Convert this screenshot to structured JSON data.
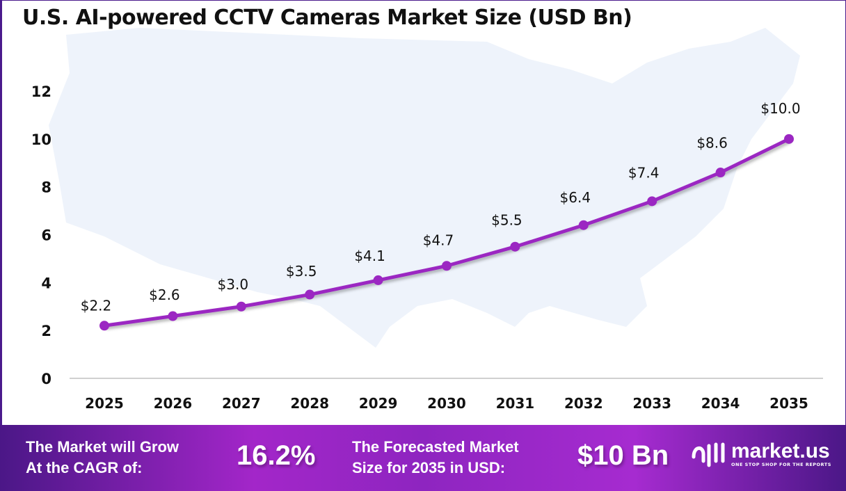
{
  "chart_data": {
    "type": "line",
    "title": "U.S. AI-powered CCTV Cameras Market Size (USD Bn)",
    "categories": [
      "2025",
      "2026",
      "2027",
      "2028",
      "2029",
      "2030",
      "2031",
      "2032",
      "2033",
      "2034",
      "2035"
    ],
    "values": [
      2.2,
      2.6,
      3.0,
      3.5,
      4.1,
      4.7,
      5.5,
      6.4,
      7.4,
      8.6,
      10.0
    ],
    "data_labels": [
      "$2.2",
      "$2.6",
      "$3.0",
      "$3.5",
      "$4.1",
      "$4.7",
      "$5.5",
      "$6.4",
      "$7.4",
      "$8.6",
      "$10.0"
    ],
    "yticks": [
      "0",
      "2",
      "4",
      "6",
      "8",
      "10",
      "12"
    ],
    "ylim": [
      0,
      12
    ],
    "grid": false,
    "line_color": "#9b27c2"
  },
  "banner": {
    "cagr_label_1": "The Market will Grow",
    "cagr_label_2": "At the CAGR of:",
    "cagr_value": "16.2%",
    "forecast_label_1": "The Forecasted Market",
    "forecast_label_2": "Size for 2035 in USD:",
    "forecast_value": "$10 Bn",
    "logo_name": "market.us",
    "logo_tagline": "ONE STOP SHOP FOR THE REPORTS"
  }
}
